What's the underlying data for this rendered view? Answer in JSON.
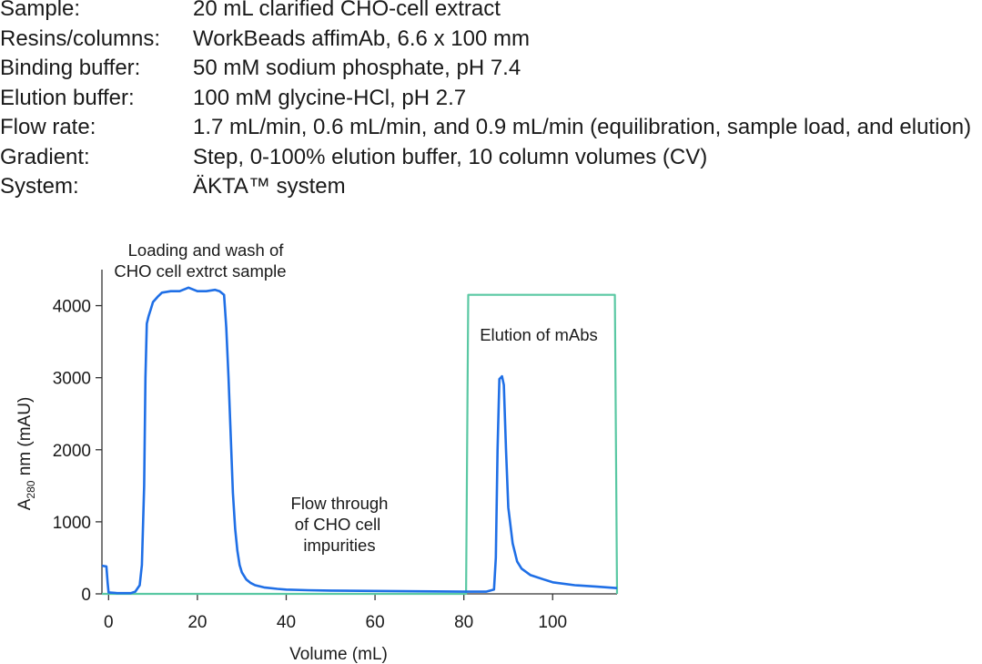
{
  "parameters": [
    {
      "label": "Sample:",
      "value": "20 mL clarified CHO-cell extract"
    },
    {
      "label": "Resins/columns:",
      "value": "WorkBeads affimAb, 6.6 x 100 mm"
    },
    {
      "label": "Binding buffer:",
      "value": "50 mM sodium phosphate, pH 7.4"
    },
    {
      "label": "Elution buffer:",
      "value": "100 mM glycine-HCl, pH 2.7"
    },
    {
      "label": "Flow rate:",
      "value": "1.7 mL/min, 0.6 mL/min, and 0.9 mL/min (equilibration, sample load, and elution)"
    },
    {
      "label": "Gradient:",
      "value": "Step, 0-100% elution buffer, 10 column volumes (CV)"
    },
    {
      "label": "System:",
      "value": "ÄKTA™ system"
    }
  ],
  "chart_data": {
    "type": "line",
    "xlabel": "Volume (mL)",
    "ylabel_main": "A",
    "ylabel_sub": "280",
    "ylabel_rest": " nm (mAU)",
    "xlim": [
      -1.5,
      114.5
    ],
    "ylim": [
      0,
      4500
    ],
    "x_ticks": [
      0,
      20,
      40,
      60,
      80,
      100
    ],
    "y_ticks": [
      0,
      1000,
      2000,
      3000,
      4000
    ],
    "annotations": {
      "loading_line1": "Loading and wash of",
      "loading_line2": "CHO cell extrct sample",
      "flow_line1": "Flow through",
      "flow_line2": "of CHO cell",
      "flow_line3": "impurities",
      "elution": "Elution of mAbs"
    },
    "series": [
      {
        "color": "#1f6fe6",
        "x": [
          -1.5,
          -0.5,
          -0.2,
          0,
          2,
          5,
          6,
          7,
          7.5,
          8,
          8.3,
          8.6,
          9,
          9.5,
          10,
          11,
          12,
          14,
          16,
          18,
          20,
          22,
          24,
          25,
          26,
          26.5,
          27,
          27.5,
          28,
          28.5,
          29,
          29.5,
          30,
          31,
          32,
          33,
          35,
          38,
          40,
          45,
          50,
          60,
          70,
          80,
          85,
          86.8,
          87.2,
          87.6,
          88,
          88.3,
          88.6,
          89,
          89.5,
          90,
          91,
          92,
          93,
          95,
          98,
          100,
          105,
          110,
          114.5
        ],
        "y": [
          390,
          380,
          150,
          20,
          10,
          10,
          30,
          120,
          400,
          1500,
          3000,
          3750,
          3850,
          3950,
          4050,
          4120,
          4180,
          4200,
          4200,
          4250,
          4200,
          4200,
          4220,
          4200,
          4150,
          3700,
          3000,
          2200,
          1400,
          900,
          600,
          400,
          300,
          200,
          150,
          120,
          90,
          70,
          60,
          50,
          45,
          40,
          35,
          30,
          30,
          60,
          500,
          2000,
          2980,
          3000,
          3020,
          2900,
          2000,
          1200,
          700,
          450,
          350,
          260,
          200,
          160,
          120,
          100,
          80
        ]
      },
      {
        "color": "#5ac8a3",
        "x": [
          -1.5,
          80.5,
          81,
          114,
          114.5
        ],
        "y": [
          0,
          0,
          4150,
          4150,
          0
        ]
      }
    ]
  }
}
